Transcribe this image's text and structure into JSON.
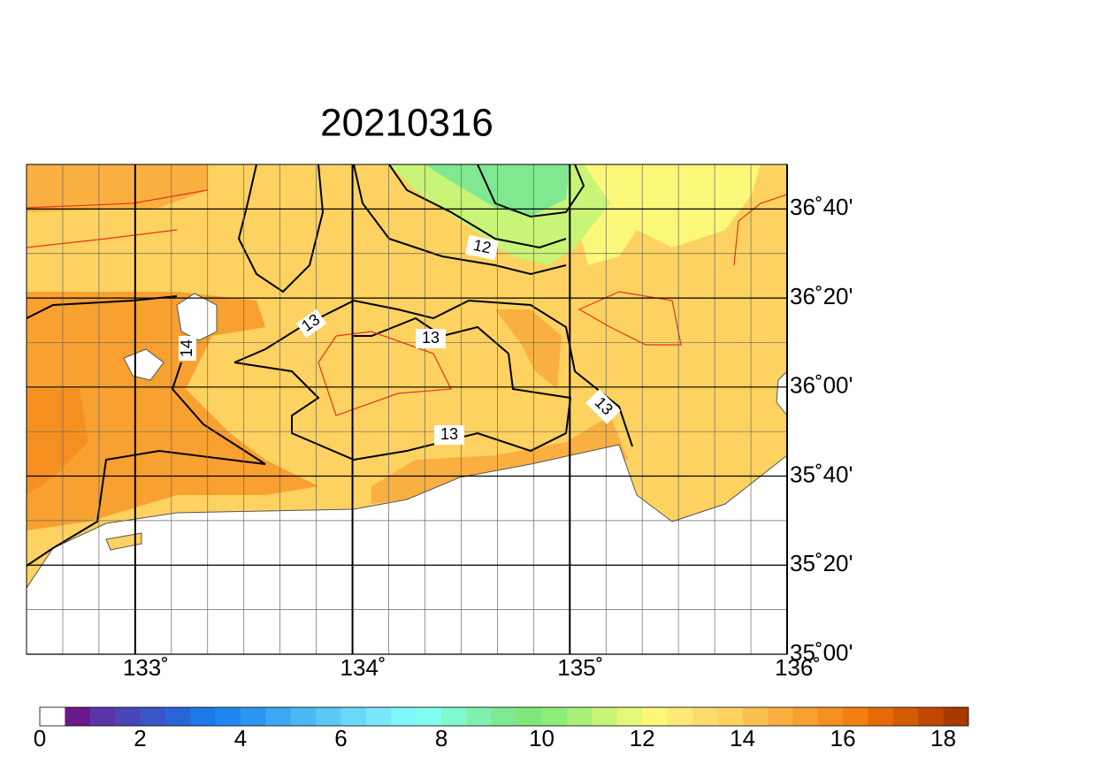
{
  "map": {
    "title": "20210316",
    "lonlim": [
      132.5,
      136
    ],
    "latlim": [
      35,
      36.8333
    ],
    "lon_ticks": [
      {
        "value": 133,
        "label": "133˚"
      },
      {
        "value": 134,
        "label": "134˚"
      },
      {
        "value": 135,
        "label": "135˚"
      },
      {
        "value": 136,
        "label": "136˚"
      }
    ],
    "lat_ticks": [
      {
        "value": 35,
        "label": "35˚00'"
      },
      {
        "value": 35.3333,
        "label": "35˚20'"
      },
      {
        "value": 35.6667,
        "label": "35˚40'"
      },
      {
        "value": 36,
        "label": "36˚00'"
      },
      {
        "value": 36.3333,
        "label": "36˚20'"
      },
      {
        "value": 36.6667,
        "label": "36˚40'"
      }
    ],
    "contour_labels": [
      "13",
      "14",
      "13",
      "12",
      "13",
      "13"
    ],
    "colorbar": {
      "lim": [
        0,
        18.5
      ],
      "ticks": [
        0,
        2,
        4,
        6,
        8,
        10,
        12,
        14,
        16,
        18
      ],
      "colors": [
        "#ffffff",
        "#6a1a8a",
        "#5a35a8",
        "#4a45b8",
        "#3a55c8",
        "#2a65d8",
        "#1f78e8",
        "#1f88f0",
        "#2a98f0",
        "#3aa8f2",
        "#4ab8f4",
        "#5ac8f6",
        "#6ad8f8",
        "#7ae8fa",
        "#7ff8fc",
        "#80fff0",
        "#80f8d0",
        "#80f0b0",
        "#80e890",
        "#7ee87a",
        "#90ec78",
        "#a8f078",
        "#c8f478",
        "#e4f878",
        "#fcf87a",
        "#fee878",
        "#fedc6c",
        "#fdd260",
        "#fcc050",
        "#fab040",
        "#f8a030",
        "#f59020",
        "#f27f10",
        "#e66a08",
        "#d45a04",
        "#c04800",
        "#a83a00"
      ]
    }
  }
}
